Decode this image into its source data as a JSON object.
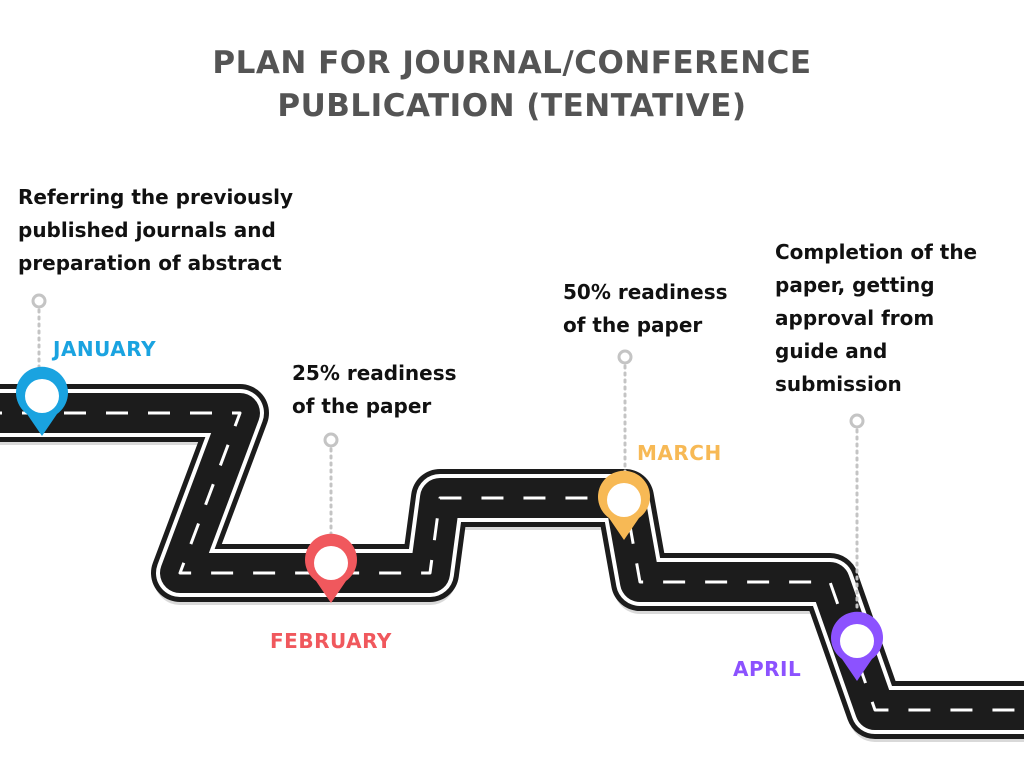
{
  "title": {
    "line1": "PLAN FOR JOURNAL/CONFERENCE",
    "line2": "PUBLICATION (TENTATIVE)"
  },
  "colors": {
    "title": "#545454",
    "road": "#1c1c1c",
    "road_edge": "#ffffff",
    "road_shadow": "#d9d9d9",
    "connector": "#c4c4c4",
    "text": "#111111"
  },
  "milestones": [
    {
      "month": "JANUARY",
      "color": "#1aa3e0",
      "description": [
        "Referring the previously",
        "published journals and",
        "preparation of abstract"
      ]
    },
    {
      "month": "FEBRUARY",
      "color": "#f0585d",
      "description": [
        "25% readiness",
        "of the paper"
      ]
    },
    {
      "month": "MARCH",
      "color": "#f7b955",
      "description": [
        "50% readiness",
        "of the paper"
      ]
    },
    {
      "month": "APRIL",
      "color": "#8c52ff",
      "description": [
        "Completion of the",
        "paper, getting",
        "approval from",
        "guide and",
        "submission"
      ]
    }
  ]
}
